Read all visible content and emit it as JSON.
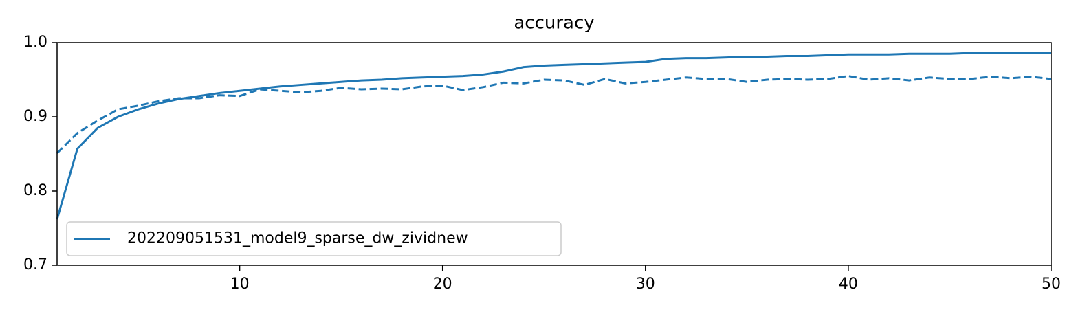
{
  "chart_data": {
    "type": "line",
    "title": "accuracy",
    "x": [
      1,
      2,
      3,
      4,
      5,
      6,
      7,
      8,
      9,
      10,
      11,
      12,
      13,
      14,
      15,
      16,
      17,
      18,
      19,
      20,
      21,
      22,
      23,
      24,
      25,
      26,
      27,
      28,
      29,
      30,
      31,
      32,
      33,
      34,
      35,
      36,
      37,
      38,
      39,
      40,
      41,
      42,
      43,
      44,
      45,
      46,
      47,
      48,
      49,
      50
    ],
    "series": [
      {
        "name": "202209051531_model9_sparse_dw_zividnew",
        "color": "#1f77b4",
        "linestyle": "solid",
        "values": [
          0.762,
          0.857,
          0.885,
          0.9,
          0.91,
          0.918,
          0.924,
          0.928,
          0.932,
          0.935,
          0.938,
          0.941,
          0.943,
          0.945,
          0.947,
          0.949,
          0.95,
          0.952,
          0.953,
          0.954,
          0.955,
          0.957,
          0.961,
          0.967,
          0.969,
          0.97,
          0.971,
          0.972,
          0.973,
          0.974,
          0.978,
          0.979,
          0.979,
          0.98,
          0.981,
          0.981,
          0.982,
          0.982,
          0.983,
          0.984,
          0.984,
          0.984,
          0.985,
          0.985,
          0.985,
          0.986,
          0.986,
          0.986,
          0.986,
          0.986
        ]
      },
      {
        "color": "#1f77b4",
        "linestyle": "dashed",
        "values": [
          0.851,
          0.878,
          0.895,
          0.91,
          0.915,
          0.921,
          0.925,
          0.925,
          0.929,
          0.928,
          0.937,
          0.935,
          0.933,
          0.935,
          0.939,
          0.937,
          0.938,
          0.937,
          0.941,
          0.942,
          0.936,
          0.94,
          0.946,
          0.945,
          0.95,
          0.949,
          0.943,
          0.951,
          0.945,
          0.947,
          0.95,
          0.953,
          0.951,
          0.951,
          0.947,
          0.95,
          0.951,
          0.95,
          0.951,
          0.955,
          0.95,
          0.952,
          0.949,
          0.953,
          0.951,
          0.951,
          0.954,
          0.952,
          0.954,
          0.951
        ]
      }
    ],
    "xlim": [
      1,
      50
    ],
    "xticks": [
      10,
      20,
      30,
      40,
      50
    ],
    "ylim": [
      0.7,
      1.0
    ],
    "yticks": [
      0.7,
      0.8,
      0.9,
      {
        "value": 1,
        "label": "1.0"
      }
    ],
    "grid": false,
    "legend": "lower left"
  }
}
